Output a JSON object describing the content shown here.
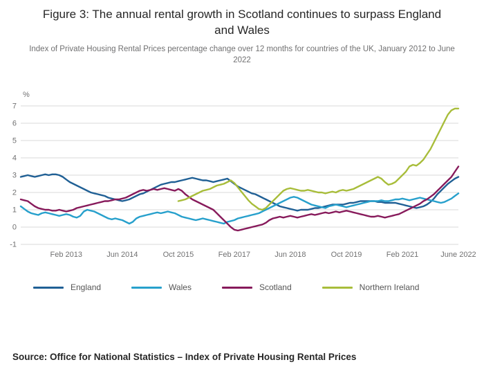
{
  "source": "Source: Office for National Statistics – Index of Private Housing Rental Prices",
  "chart_data": {
    "type": "line",
    "title": "Figure 3: The annual rental growth in Scotland continues to surpass England and Wales",
    "subtitle": "Index of Private Housing Rental Prices percentage change over 12 months for countries of the UK, January 2012 to June 2022",
    "ylabel": "%",
    "xlabel": "",
    "ylim": [
      -1,
      7
    ],
    "y_ticks": [
      -1,
      0,
      1,
      2,
      3,
      4,
      5,
      6,
      7
    ],
    "grid": "horizontal",
    "legend_position": "bottom",
    "x_unit": "month",
    "x_start": "Jan 2012",
    "x_end": "June 2022",
    "n_points": 126,
    "x_ticks": [
      {
        "index": 13,
        "label": "Feb 2013"
      },
      {
        "index": 29,
        "label": "Jun 2014"
      },
      {
        "index": 45,
        "label": "Oct 2015"
      },
      {
        "index": 61,
        "label": "Feb 2017"
      },
      {
        "index": 77,
        "label": "Jun 2018"
      },
      {
        "index": 93,
        "label": "Oct 2019"
      },
      {
        "index": 109,
        "label": "Feb 2021"
      },
      {
        "index": 125,
        "label": "June 2022"
      }
    ],
    "series": [
      {
        "name": "England",
        "color": "#206095",
        "start_index": 0,
        "values": [
          2.9,
          2.95,
          3.0,
          2.95,
          2.9,
          2.95,
          3.0,
          3.05,
          3.0,
          3.05,
          3.05,
          3.0,
          2.9,
          2.75,
          2.6,
          2.5,
          2.4,
          2.3,
          2.2,
          2.1,
          2.0,
          1.95,
          1.9,
          1.85,
          1.8,
          1.7,
          1.65,
          1.6,
          1.55,
          1.5,
          1.55,
          1.6,
          1.7,
          1.8,
          1.9,
          1.95,
          2.05,
          2.15,
          2.25,
          2.35,
          2.45,
          2.5,
          2.55,
          2.6,
          2.6,
          2.65,
          2.7,
          2.75,
          2.8,
          2.85,
          2.8,
          2.75,
          2.7,
          2.7,
          2.65,
          2.6,
          2.65,
          2.7,
          2.75,
          2.8,
          2.65,
          2.5,
          2.35,
          2.25,
          2.15,
          2.05,
          1.95,
          1.9,
          1.8,
          1.7,
          1.6,
          1.5,
          1.4,
          1.3,
          1.2,
          1.15,
          1.1,
          1.05,
          1.0,
          0.95,
          1.0,
          1.0,
          1.0,
          1.05,
          1.1,
          1.1,
          1.15,
          1.2,
          1.25,
          1.3,
          1.3,
          1.3,
          1.3,
          1.35,
          1.4,
          1.4,
          1.45,
          1.5,
          1.5,
          1.5,
          1.5,
          1.5,
          1.45,
          1.45,
          1.4,
          1.4,
          1.4,
          1.4,
          1.35,
          1.3,
          1.25,
          1.2,
          1.15,
          1.1,
          1.15,
          1.2,
          1.3,
          1.45,
          1.65,
          1.9,
          2.1,
          2.3,
          2.5,
          2.65,
          2.8,
          2.9
        ]
      },
      {
        "name": "Wales",
        "color": "#27a0cc",
        "start_index": 0,
        "values": [
          1.2,
          1.05,
          0.9,
          0.8,
          0.75,
          0.7,
          0.8,
          0.85,
          0.8,
          0.75,
          0.7,
          0.65,
          0.7,
          0.75,
          0.7,
          0.6,
          0.55,
          0.65,
          0.9,
          1.0,
          0.95,
          0.9,
          0.8,
          0.7,
          0.6,
          0.5,
          0.45,
          0.5,
          0.45,
          0.4,
          0.3,
          0.2,
          0.3,
          0.5,
          0.6,
          0.65,
          0.7,
          0.75,
          0.8,
          0.85,
          0.8,
          0.85,
          0.9,
          0.85,
          0.8,
          0.7,
          0.6,
          0.55,
          0.5,
          0.45,
          0.4,
          0.45,
          0.5,
          0.45,
          0.4,
          0.35,
          0.3,
          0.25,
          0.2,
          0.3,
          0.35,
          0.4,
          0.5,
          0.55,
          0.6,
          0.65,
          0.7,
          0.75,
          0.8,
          0.9,
          1.0,
          1.1,
          1.2,
          1.3,
          1.4,
          1.5,
          1.6,
          1.7,
          1.75,
          1.7,
          1.6,
          1.5,
          1.4,
          1.3,
          1.25,
          1.2,
          1.15,
          1.1,
          1.2,
          1.25,
          1.3,
          1.25,
          1.2,
          1.15,
          1.2,
          1.25,
          1.3,
          1.35,
          1.4,
          1.45,
          1.5,
          1.5,
          1.5,
          1.55,
          1.5,
          1.5,
          1.55,
          1.6,
          1.6,
          1.65,
          1.6,
          1.55,
          1.6,
          1.65,
          1.7,
          1.65,
          1.6,
          1.55,
          1.5,
          1.45,
          1.4,
          1.45,
          1.55,
          1.65,
          1.8,
          1.95
        ]
      },
      {
        "name": "Scotland",
        "color": "#871a5b",
        "start_index": 0,
        "values": [
          1.6,
          1.55,
          1.5,
          1.35,
          1.2,
          1.1,
          1.05,
          1.0,
          1.0,
          0.95,
          0.95,
          1.0,
          0.95,
          0.9,
          0.95,
          1.0,
          1.1,
          1.15,
          1.2,
          1.25,
          1.3,
          1.35,
          1.4,
          1.45,
          1.5,
          1.5,
          1.55,
          1.6,
          1.6,
          1.65,
          1.7,
          1.8,
          1.9,
          2.0,
          2.1,
          2.15,
          2.1,
          2.15,
          2.2,
          2.15,
          2.2,
          2.25,
          2.2,
          2.15,
          2.1,
          2.2,
          2.1,
          1.9,
          1.75,
          1.6,
          1.5,
          1.4,
          1.3,
          1.2,
          1.1,
          1.0,
          0.8,
          0.6,
          0.4,
          0.2,
          0.0,
          -0.15,
          -0.2,
          -0.15,
          -0.1,
          -0.05,
          0.0,
          0.05,
          0.1,
          0.15,
          0.25,
          0.4,
          0.5,
          0.55,
          0.6,
          0.55,
          0.6,
          0.65,
          0.6,
          0.55,
          0.6,
          0.65,
          0.7,
          0.75,
          0.7,
          0.75,
          0.8,
          0.85,
          0.8,
          0.85,
          0.9,
          0.85,
          0.9,
          0.95,
          0.9,
          0.85,
          0.8,
          0.75,
          0.7,
          0.65,
          0.6,
          0.6,
          0.65,
          0.6,
          0.55,
          0.6,
          0.65,
          0.7,
          0.75,
          0.85,
          0.95,
          1.05,
          1.15,
          1.25,
          1.35,
          1.5,
          1.6,
          1.75,
          1.9,
          2.1,
          2.3,
          2.5,
          2.7,
          2.9,
          3.2,
          3.5
        ]
      },
      {
        "name": "Northern Ireland",
        "color": "#a8bd3a",
        "start_index": 45,
        "values": [
          1.5,
          1.55,
          1.6,
          1.7,
          1.8,
          1.9,
          2.0,
          2.1,
          2.15,
          2.2,
          2.3,
          2.4,
          2.45,
          2.5,
          2.6,
          2.7,
          2.55,
          2.3,
          2.05,
          1.8,
          1.55,
          1.35,
          1.2,
          1.05,
          1.0,
          1.1,
          1.3,
          1.5,
          1.7,
          1.9,
          2.1,
          2.2,
          2.25,
          2.2,
          2.15,
          2.1,
          2.1,
          2.15,
          2.1,
          2.05,
          2.0,
          2.0,
          1.95,
          2.0,
          2.05,
          2.0,
          2.1,
          2.15,
          2.1,
          2.15,
          2.2,
          2.3,
          2.4,
          2.5,
          2.6,
          2.7,
          2.8,
          2.9,
          2.8,
          2.6,
          2.45,
          2.5,
          2.6,
          2.8,
          3.0,
          3.2,
          3.5,
          3.6,
          3.55,
          3.7,
          3.9,
          4.2,
          4.5,
          4.9,
          5.3,
          5.7,
          6.1,
          6.5,
          6.75,
          6.85,
          6.85
        ]
      }
    ]
  }
}
